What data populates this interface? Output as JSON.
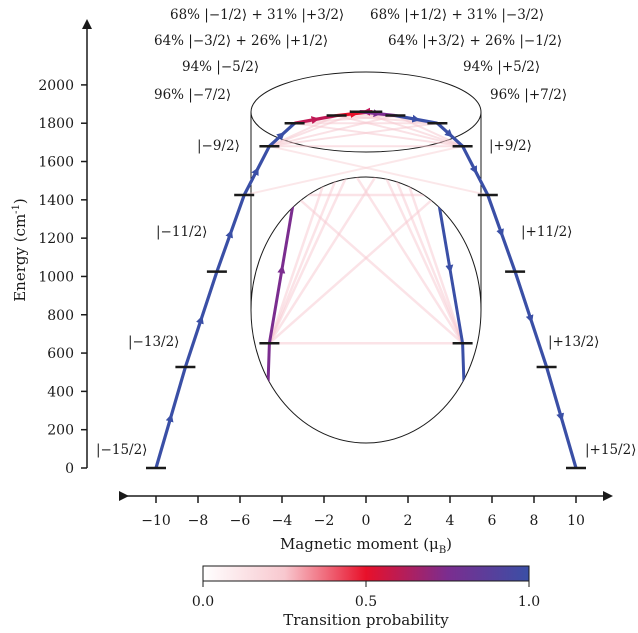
{
  "colors": {
    "axis": "#1a1a1a",
    "path_high": "#3a4fa6",
    "cmap": [
      "#ffffff",
      "#f8c8cf",
      "#e8102a",
      "#7b2d8f",
      "#3a4fa6"
    ]
  },
  "chart_data": {
    "type": "line",
    "xlabel": "Magnetic moment (μ_B)",
    "xlabel_main": "Magnetic moment (μ",
    "xlabel_sub": "B",
    "xlabel_end": ")",
    "ylabel": "Energy (cm⁻¹)",
    "ylabel_main": "Energy (cm",
    "ylabel_sup": "-1",
    "ylabel_end": ")",
    "xlim": [
      -11,
      11
    ],
    "ylim": [
      0,
      2050
    ],
    "x_ticks": [
      "−10",
      "−8",
      "−6",
      "−4",
      "−2",
      "0",
      "2",
      "4",
      "6",
      "8",
      "10"
    ],
    "x_tick_values": [
      -10,
      -8,
      -6,
      -4,
      -2,
      0,
      2,
      4,
      6,
      8,
      10
    ],
    "y_ticks": [
      "0",
      "200",
      "400",
      "600",
      "800",
      "1000",
      "1200",
      "1400",
      "1600",
      "1800",
      "2000"
    ],
    "y_tick_values": [
      0,
      200,
      400,
      600,
      800,
      1000,
      1200,
      1400,
      1600,
      1800,
      2000
    ],
    "states": [
      {
        "x": -10,
        "y": 0,
        "label": "|−15/2⟩",
        "side": "left"
      },
      {
        "x": -8.6,
        "y": 527,
        "label": "|−13/2⟩",
        "side": "left"
      },
      {
        "x": -7.1,
        "y": 1025,
        "label": "|−11/2⟩",
        "side": "left"
      },
      {
        "x": -5.8,
        "y": 1425,
        "label": "|−9/2⟩",
        "side": "left"
      },
      {
        "x": -4.6,
        "y": 1680,
        "label": "96% |−7/2⟩",
        "side": "left"
      },
      {
        "x": -3.4,
        "y": 1800,
        "label": "94% |−5/2⟩",
        "side": "left"
      },
      {
        "x": -1.4,
        "y": 1840,
        "label": "64% |−3/2⟩ + 26% |+1/2⟩",
        "side": "left"
      },
      {
        "x": 0.3,
        "y": 1860,
        "label": "68% |−1/2⟩ + 31% |+3/2⟩",
        "side": "left"
      },
      {
        "x": -0.3,
        "y": 1860,
        "label": "68% |+1/2⟩ + 31% |−3/2⟩",
        "side": "right"
      },
      {
        "x": 1.4,
        "y": 1840,
        "label": "64% |+3/2⟩ + 26% |−1/2⟩",
        "side": "right"
      },
      {
        "x": 3.4,
        "y": 1800,
        "label": "94% |+5/2⟩",
        "side": "right"
      },
      {
        "x": 4.6,
        "y": 1680,
        "label": "96% |+7/2⟩",
        "side": "right"
      },
      {
        "x": 5.8,
        "y": 1425,
        "label": "|+9/2⟩",
        "side": "right"
      },
      {
        "x": 7.1,
        "y": 1025,
        "label": "|+11/2⟩",
        "side": "right"
      },
      {
        "x": 8.6,
        "y": 527,
        "label": "|+13/2⟩",
        "side": "right"
      },
      {
        "x": 10,
        "y": 0,
        "label": "|+15/2⟩",
        "side": "right"
      }
    ],
    "colorbar": {
      "label": "Transition probability",
      "ticks": [
        "0.0",
        "0.5",
        "1.0"
      ],
      "tick_values": [
        0,
        0.5,
        1
      ]
    },
    "grid": false
  }
}
